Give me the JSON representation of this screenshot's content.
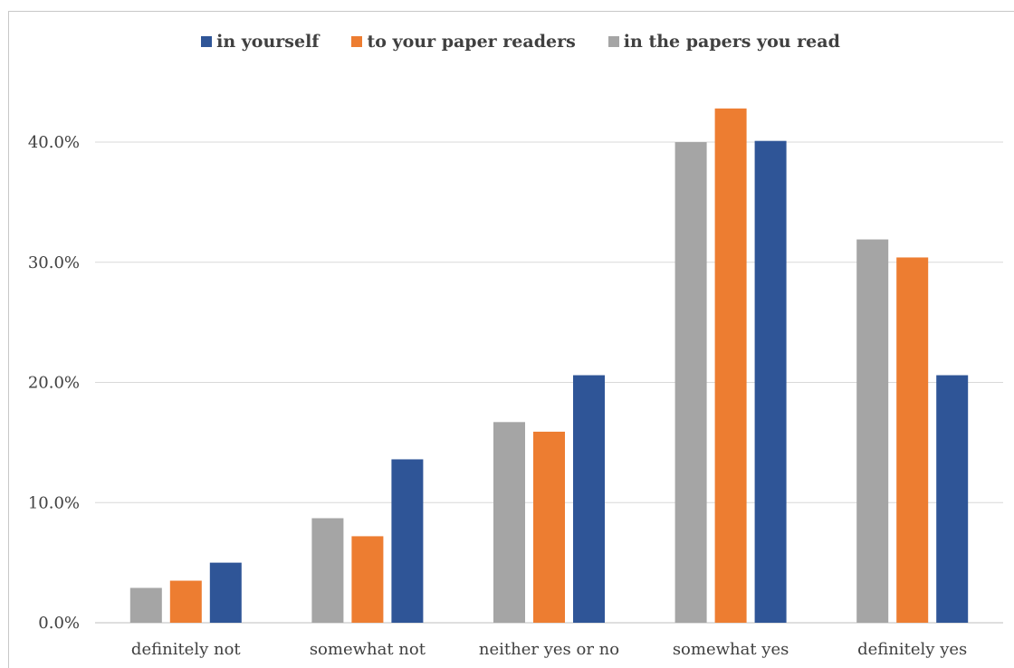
{
  "chart_data": {
    "type": "bar",
    "categories": [
      "definitely not",
      "somewhat not",
      "neither yes or no",
      "somewhat yes",
      "definitely yes"
    ],
    "series": [
      {
        "name": "in the papers you read",
        "color": "#a5a5a5",
        "values": [
          2.9,
          8.7,
          16.7,
          40.0,
          31.9
        ]
      },
      {
        "name": "to your paper readers",
        "color": "#ed7d31",
        "values": [
          3.5,
          7.2,
          15.9,
          42.8,
          30.4
        ]
      },
      {
        "name": "in yourself",
        "color": "#2f5597",
        "values": [
          5.0,
          13.6,
          20.6,
          40.1,
          20.6
        ]
      }
    ],
    "legend_order": [
      "in yourself",
      "to your paper readers",
      "in the papers you read"
    ],
    "legend_position": "top",
    "y_ticks": [
      "0.0%",
      "10.0%",
      "20.0%",
      "30.0%",
      "40.0%"
    ],
    "y_tick_values": [
      0,
      10,
      20,
      30,
      40
    ],
    "ylim": [
      0,
      40
    ],
    "grid": true,
    "title": "",
    "xlabel": "",
    "ylabel": ""
  }
}
